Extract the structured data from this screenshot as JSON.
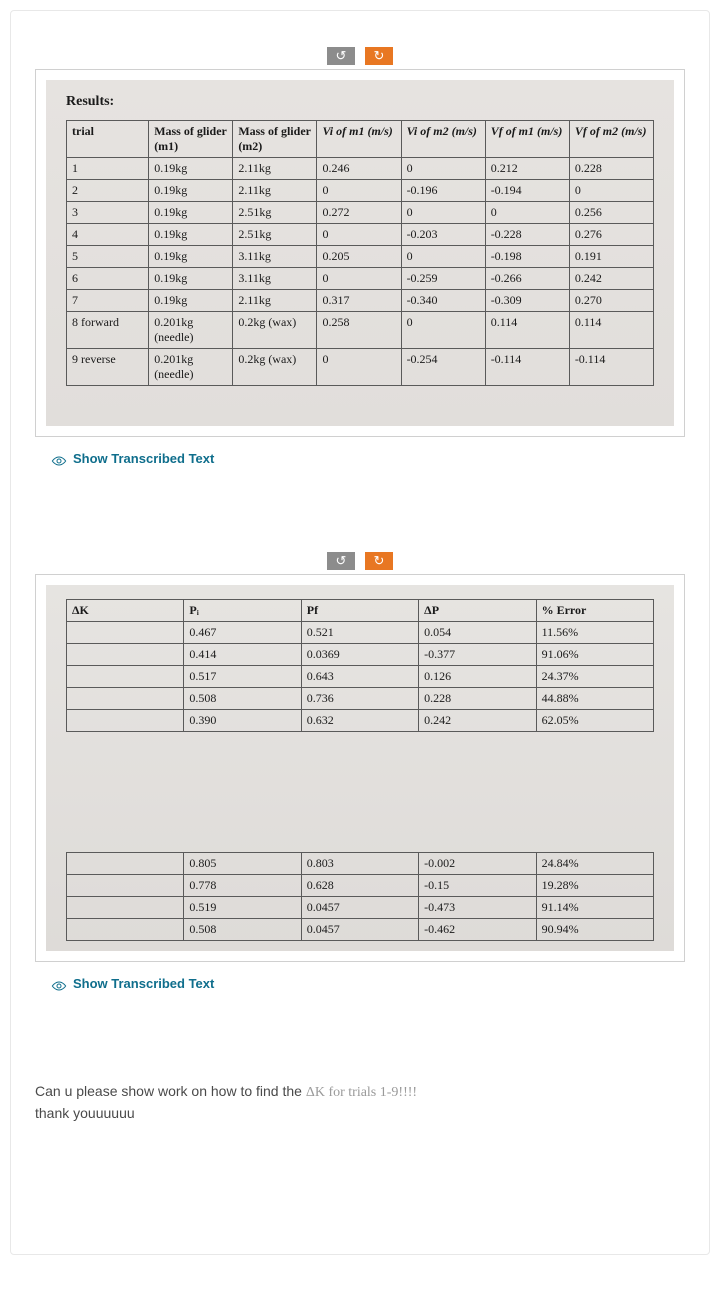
{
  "nav": {
    "prev_glyph": "↺",
    "next_glyph": "↻"
  },
  "show_transcribed": "Show Transcribed Text",
  "results_block": {
    "title": "Results:",
    "headers": [
      "trial",
      "Mass of glider (m1)",
      "Mass of glider (m2)",
      "Vi of m1 (m/s)",
      "Vi of m2 (m/s)",
      "Vf of m1 (m/s)",
      "Vf of m2 (m/s)"
    ],
    "rows": [
      [
        "1",
        "0.19kg",
        "2.11kg",
        "0.246",
        "0",
        "0.212",
        "0.228"
      ],
      [
        "2",
        "0.19kg",
        "2.11kg",
        "0",
        "-0.196",
        "-0.194",
        "0"
      ],
      [
        "3",
        "0.19kg",
        "2.51kg",
        "0.272",
        "0",
        "0",
        "0.256"
      ],
      [
        "4",
        "0.19kg",
        "2.51kg",
        "0",
        "-0.203",
        "-0.228",
        "0.276"
      ],
      [
        "5",
        "0.19kg",
        "3.11kg",
        "0.205",
        "0",
        "-0.198",
        "0.191"
      ],
      [
        "6",
        "0.19kg",
        "3.11kg",
        "0",
        "-0.259",
        "-0.266",
        "0.242"
      ],
      [
        "7",
        "0.19kg",
        "2.11kg",
        "0.317",
        "-0.340",
        "-0.309",
        "0.270"
      ],
      [
        "8 forward",
        "0.201kg (needle)",
        "0.2kg (wax)",
        "0.258",
        "0",
        "0.114",
        "0.114"
      ],
      [
        "9 reverse",
        "0.201kg (needle)",
        "0.2kg (wax)",
        "0",
        "-0.254",
        "-0.114",
        "-0.114"
      ]
    ]
  },
  "analysis_block": {
    "headers": [
      "ΔK",
      "Pᵢ",
      "Pf",
      "ΔP",
      "% Error"
    ],
    "rows_top": [
      [
        "",
        "0.467",
        "0.521",
        "0.054",
        "11.56%"
      ],
      [
        "",
        "0.414",
        "0.0369",
        "-0.377",
        "91.06%"
      ],
      [
        "",
        "0.517",
        "0.643",
        "0.126",
        "24.37%"
      ],
      [
        "",
        "0.508",
        "0.736",
        "0.228",
        "44.88%"
      ],
      [
        "",
        "0.390",
        "0.632",
        "0.242",
        "62.05%"
      ]
    ],
    "rows_bottom": [
      [
        "",
        "0.805",
        "0.803",
        "-0.002",
        "24.84%"
      ],
      [
        "",
        "0.778",
        "0.628",
        "-0.15",
        "19.28%"
      ],
      [
        "",
        "0.519",
        "0.0457",
        "-0.473",
        "91.14%"
      ],
      [
        "",
        "0.508",
        "0.0457",
        "-0.462",
        "90.94%"
      ]
    ]
  },
  "question": {
    "line1a": "Can u please show work on how to find the ",
    "line1b": "ΔK for trials 1-9!!!!",
    "line2": "thank youuuuuu"
  },
  "colors": {
    "accent_link": "#0f6e8c",
    "nav_prev_bg": "#8c8c8c",
    "nav_next_bg": "#e87722",
    "photo_bg": "#e4e1de",
    "border": "#5a5a5a"
  }
}
